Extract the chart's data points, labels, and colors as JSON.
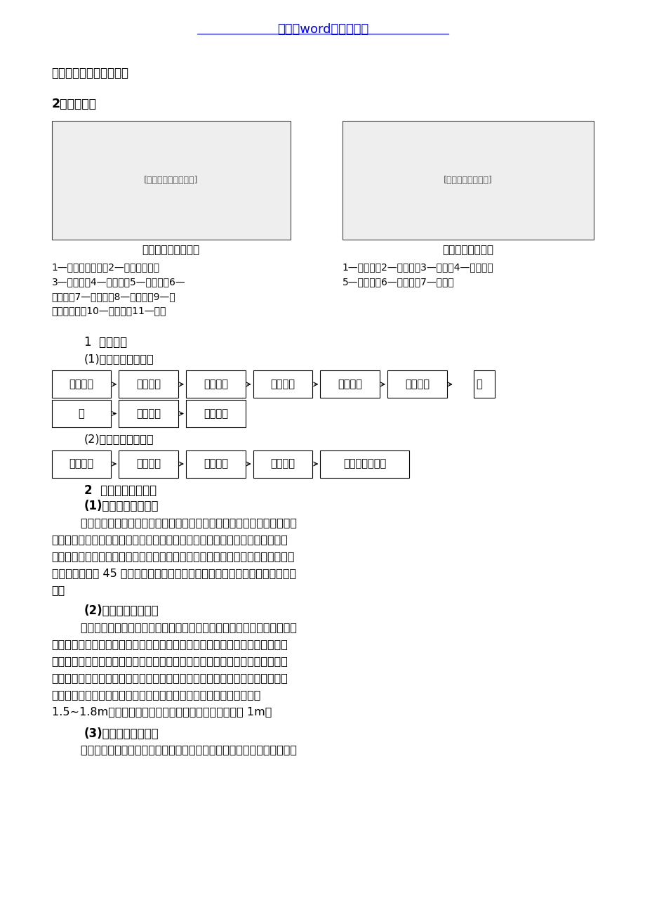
{
  "title_link": "文档为word版本可编辑",
  "title_link_color": "#0000FF",
  "bg_color": "#FFFFFF",
  "flow1_boxes": [
    "预制加工",
    "干管安装",
    "立管安装",
    "支管安装",
    "管道试压",
    "管道防腐",
    "保"
  ],
  "flow2_boxes": [
    "温",
    "管道冲洗",
    "配件安装"
  ],
  "flow3_boxes": [
    "管道预制",
    "干管安装",
    "立管安装",
    "支管安装",
    "灌水、通球试验"
  ],
  "legends_left": [
    "1—台上式洗脸盆；2—冷热型水嘴；",
    "3—溢水槽；4—存水弯；5—八字门；6—",
    "热水管；7—冷水管；8—污水管；9—大",
    "理石台面板；10—装饰门；11—镜子"
  ],
  "legends_right": [
    "1—大便器；2—存水弯；3—横管；4—给水管；",
    "5—胶皮碗；6—防水层；7—白灰膏"
  ],
  "para1_lines": [
    "        安装前先检查预留洞口，以设计尺寸确定位置，修改洞口。给水干管安装",
    "时一般从总进入口开始操作，总进口端头加临时丝堵以备试压用。管道预制后、",
    "安装前做好防腐，丝扣连接管道抹铅油缠麻，然后用管钳上紧，安装后找直找正。",
    "排水管应用两个 45 度弯头连接。排出管安装时，出墙管口堵好，以便做闭水试",
    "验。"
  ],
  "para2_lines": [
    "        给排水立管宜分主管、支立管分步预制安装。安装前先检查预留洞口，以",
    "设计尺寸确定位置，修改洞口。安装时，若需打洞，洞口直径不应过大，并且不",
    "得随意切断楼板钢筋。必须切断时，需在立管安装后焊接加固。立管安装先每层",
    "从上至下统一安装卡件，然后安装立管，安装完后用线坠吊直找正。冷热水立管",
    "安装要求热水管在左，冷水管在右。给水立管每层设管卡，高度距地面",
    "1.5~1.8m。排水立管应每层设检查口，高度距安装地面 1m。"
  ],
  "para3_lines": [
    "        给水支管安装前核定各卫生洁具冷热水预留口高度、位置，找平正后裁支"
  ]
}
